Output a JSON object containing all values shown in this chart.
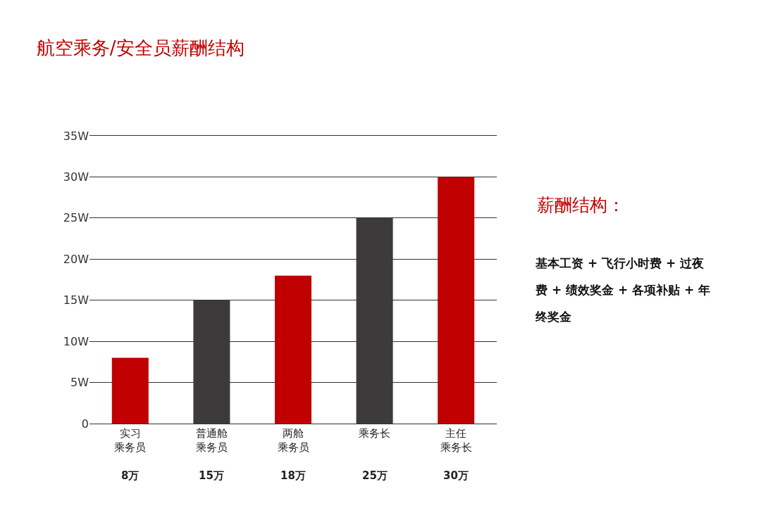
{
  "chart_data": {
    "type": "bar",
    "title": "航空乘务/安全员薪酬结构",
    "categories": [
      "实习乘务员",
      "普通舱乘务员",
      "两舱乘务员",
      "乘务长",
      "主任乘务长"
    ],
    "values": [
      8,
      15,
      18,
      25,
      30
    ],
    "value_labels": [
      "8万",
      "15万",
      "18万",
      "25万",
      "30万"
    ],
    "colors": [
      "#c00000",
      "#3d3a3b",
      "#c00000",
      "#3d3a3b",
      "#c00000"
    ],
    "ylim": [
      0,
      35
    ],
    "yticks": [
      0,
      {
        "value": 5,
        "label": "5W"
      },
      {
        "value": 10,
        "label": "10W"
      },
      {
        "value": 15,
        "label": "15W"
      },
      {
        "value": 20,
        "label": "20W"
      },
      {
        "value": 25,
        "label": "25W"
      },
      {
        "value": 30,
        "label": "30W"
      },
      {
        "value": 35,
        "label": "35W"
      }
    ],
    "grid": "y",
    "annotations": [
      "薪酬结构：",
      "基本工资 + 飞行小时费 + 过夜费 + 绩效奖金 + 各项补贴 + 年终奖金"
    ]
  }
}
